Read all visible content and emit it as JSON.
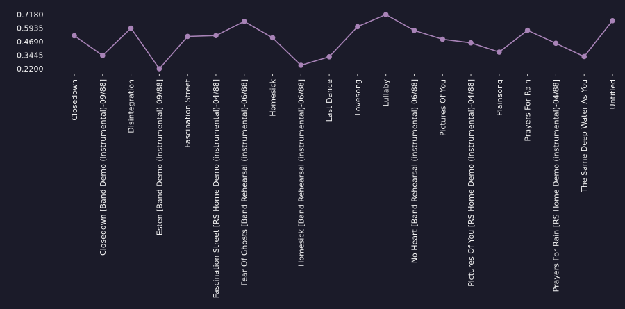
{
  "chart_data": {
    "type": "line",
    "title": "",
    "xlabel": "",
    "ylabel": "",
    "categories": [
      "Closedown",
      "Closedown [Band Demo (instrumental)-09/88]",
      "Disintegration",
      "Esten [Band Demo (instrumental)-09/88]",
      "Fascination Street",
      "Fascination Street [RS Home Demo (instrumental)-04/88]",
      "Fear Of Ghosts [Band Rehearsal (instrumental)-06/88]",
      "Homesick",
      "Homesick [Band Rehearsal (instrumental)-06/88]",
      "Last Dance",
      "Lovesong",
      "Lullaby",
      "No Heart [Band Rehearsal (instrumental)-06/88]",
      "Pictures Of You",
      "Pictures Of You [RS Home Demo (instrumental)-04/88]",
      "Plainsong",
      "Prayers For Rain",
      "Prayers For Rain [RS Home Demo (instrumental)-04/88]",
      "The Same Deep Water As You",
      "Untitled"
    ],
    "values": [
      0.524,
      0.342,
      0.593,
      0.22,
      0.517,
      0.525,
      0.655,
      0.505,
      0.252,
      0.33,
      0.607,
      0.718,
      0.572,
      0.491,
      0.458,
      0.373,
      0.573,
      0.454,
      0.332,
      0.662
    ],
    "yticks": [
      "0.7180",
      "0.5935",
      "0.4690",
      "0.3445",
      "0.2200"
    ],
    "ylim": [
      0.22,
      0.718
    ],
    "grid": false,
    "colors": {
      "line": "#a883b7",
      "marker": "#a883b7",
      "background": "#1b1b29",
      "text": "#f2f2f2",
      "tick": "#cfcfcf"
    }
  }
}
